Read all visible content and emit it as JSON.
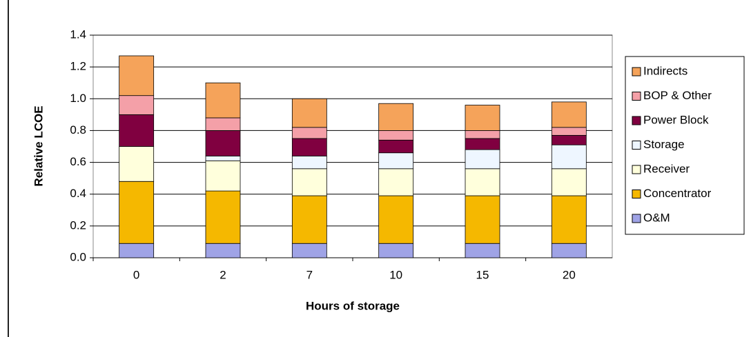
{
  "chart_data": {
    "type": "stacked_bar",
    "x_label": "Hours of storage",
    "y_label": "Relative LCOE",
    "categories": [
      "0",
      "2",
      "7",
      "10",
      "15",
      "20"
    ],
    "series": [
      {
        "name": "O&M",
        "color": "#9fa3e6",
        "values": [
          0.09,
          0.09,
          0.09,
          0.09,
          0.09,
          0.09
        ]
      },
      {
        "name": "Concentrator",
        "color": "#f5b800",
        "values": [
          0.39,
          0.33,
          0.3,
          0.3,
          0.3,
          0.3
        ]
      },
      {
        "name": "Receiver",
        "color": "#ffffdc",
        "values": [
          0.22,
          0.19,
          0.17,
          0.17,
          0.17,
          0.17
        ]
      },
      {
        "name": "Storage",
        "color": "#eef6ff",
        "values": [
          0,
          0.03,
          0.08,
          0.1,
          0.12,
          0.15
        ]
      },
      {
        "name": "Power Block",
        "color": "#800040",
        "values": [
          0.2,
          0.16,
          0.11,
          0.08,
          0.07,
          0.06
        ]
      },
      {
        "name": "BOP & Other",
        "color": "#f4a0a8",
        "values": [
          0.12,
          0.08,
          0.07,
          0.06,
          0.05,
          0.05
        ]
      },
      {
        "name": "Indirects",
        "color": "#f5a35a",
        "values": [
          0.25,
          0.22,
          0.18,
          0.17,
          0.16,
          0.16
        ]
      }
    ],
    "ylim": [
      0,
      1.4
    ],
    "yticks": [
      {
        "value": 0,
        "label": "0.0"
      },
      0.2,
      0.4,
      0.6,
      0.8,
      {
        "value": 1,
        "label": "1.0"
      },
      1.2,
      1.4
    ],
    "grid": true
  }
}
